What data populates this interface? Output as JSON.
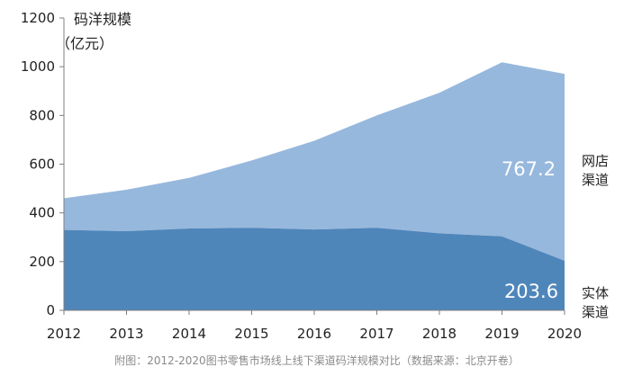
{
  "chart_data": {
    "type": "area",
    "stacked": true,
    "ylabel": "码洋规模",
    "yunit": "（亿元）",
    "ylim": [
      0,
      1200
    ],
    "yticks": [
      0,
      200,
      400,
      600,
      800,
      1000,
      1200
    ],
    "categories": [
      "2012",
      "2013",
      "2014",
      "2015",
      "2016",
      "2017",
      "2018",
      "2019",
      "2020"
    ],
    "series": [
      {
        "name": "实体渠道",
        "color": "#4f86ba",
        "values": [
          330,
          325,
          336,
          339,
          332,
          339,
          316,
          304,
          203.6
        ]
      },
      {
        "name": "网店渠道",
        "color": "#97b8dd",
        "values": [
          130,
          170,
          208,
          276,
          364,
          461,
          577,
          714,
          767.2
        ]
      }
    ],
    "data_labels": {
      "online_2020": "767.2",
      "physical_2020": "203.6"
    },
    "legend": {
      "online": [
        "网店",
        "渠道"
      ],
      "physical": [
        "实体",
        "渠道"
      ]
    },
    "caption": "附图：2012-2020图书零售市场线上线下渠道码洋规模对比（数据来源：北京开卷）",
    "grid": false
  }
}
